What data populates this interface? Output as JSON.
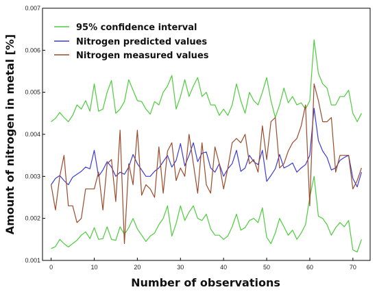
{
  "chart_data": {
    "type": "line",
    "title": "",
    "xlabel": "Number of observations",
    "ylabel": "Amount of nitrogen in metal [%]",
    "xlim": [
      -2,
      74
    ],
    "ylim": [
      0.001,
      0.007
    ],
    "xticks": [
      "0",
      "10",
      "20",
      "30",
      "40",
      "50",
      "60",
      "70"
    ],
    "yticks": [
      "0.001",
      "0.002",
      "0.003",
      "0.004",
      "0.005",
      "0.006",
      "0.007"
    ],
    "grid": false,
    "legend_position": "top-left",
    "x": [
      0,
      1,
      2,
      3,
      4,
      5,
      6,
      7,
      8,
      9,
      10,
      11,
      12,
      13,
      14,
      15,
      16,
      17,
      18,
      19,
      20,
      21,
      22,
      23,
      24,
      25,
      26,
      27,
      28,
      29,
      30,
      31,
      32,
      33,
      34,
      35,
      36,
      37,
      38,
      39,
      40,
      41,
      42,
      43,
      44,
      45,
      46,
      47,
      48,
      49,
      50,
      51,
      52,
      53,
      54,
      55,
      56,
      57,
      58,
      59,
      60,
      61,
      62,
      63,
      64,
      65,
      66,
      67,
      68,
      69,
      70,
      71,
      72
    ],
    "series": [
      {
        "name": "95% confidence interval",
        "color": "#4ccc3c",
        "values": [
          0.0043,
          0.00438,
          0.00452,
          0.0044,
          0.0043,
          0.00445,
          0.0047,
          0.0046,
          0.0048,
          0.00455,
          0.0052,
          0.00455,
          0.0046,
          0.005,
          0.00528,
          0.0045,
          0.0046,
          0.00478,
          0.0053,
          0.00505,
          0.0048,
          0.00478,
          0.0046,
          0.00448,
          0.00478,
          0.0047,
          0.005,
          0.00515,
          0.0054,
          0.0046,
          0.0049,
          0.0053,
          0.0049,
          0.00515,
          0.00535,
          0.0049,
          0.005,
          0.0047,
          0.0047,
          0.00445,
          0.0046,
          0.00445,
          0.0047,
          0.0052,
          0.0048,
          0.0045,
          0.005,
          0.0048,
          0.0047,
          0.005,
          0.00535,
          0.0048,
          0.0044,
          0.0047,
          0.0051,
          0.00475,
          0.0049,
          0.0047,
          0.00475,
          0.0046,
          0.0048,
          0.00625,
          0.00545,
          0.0052,
          0.0051,
          0.0047,
          0.0047,
          0.0049,
          0.0049,
          0.00505,
          0.0045,
          0.0043,
          0.0045
        ]
      },
      {
        "name": "",
        "color": "#4ccc3c",
        "values": [
          0.00128,
          0.00133,
          0.0015,
          0.0014,
          0.00132,
          0.0014,
          0.00148,
          0.0016,
          0.00168,
          0.00152,
          0.00178,
          0.0015,
          0.00152,
          0.0018,
          0.0015,
          0.00148,
          0.0018,
          0.00162,
          0.00178,
          0.002,
          0.00175,
          0.0016,
          0.00145,
          0.00158,
          0.00165,
          0.00185,
          0.002,
          0.0023,
          0.00158,
          0.00188,
          0.0023,
          0.00195,
          0.00215,
          0.0023,
          0.002,
          0.00195,
          0.0021,
          0.00175,
          0.0016,
          0.0016,
          0.0015,
          0.00158,
          0.0018,
          0.0021,
          0.00172,
          0.00178,
          0.00195,
          0.002,
          0.0019,
          0.00225,
          0.00155,
          0.0014,
          0.00165,
          0.002,
          0.0018,
          0.0016,
          0.00172,
          0.0015,
          0.00165,
          0.00185,
          0.0025,
          0.003,
          0.00205,
          0.002,
          0.00185,
          0.0016,
          0.00178,
          0.0019,
          0.0018,
          0.00195,
          0.00125,
          0.0012,
          0.0015
        ]
      },
      {
        "name": "Nitrogen predicted values",
        "color": "#3a3ad8",
        "values": [
          0.0028,
          0.00295,
          0.00302,
          0.0029,
          0.0028,
          0.00298,
          0.00305,
          0.00312,
          0.00322,
          0.00318,
          0.00362,
          0.003,
          0.00315,
          0.00335,
          0.00322,
          0.003,
          0.0031,
          0.00305,
          0.00322,
          0.00352,
          0.0033,
          0.00315,
          0.003,
          0.003,
          0.00312,
          0.0032,
          0.00335,
          0.0035,
          0.00322,
          0.00338,
          0.00378,
          0.00325,
          0.0035,
          0.0038,
          0.00335,
          0.00355,
          0.00358,
          0.0032,
          0.0031,
          0.0033,
          0.003,
          0.00318,
          0.0033,
          0.00362,
          0.00312,
          0.0032,
          0.0035,
          0.00335,
          0.00328,
          0.00362,
          0.00288,
          0.00302,
          0.00318,
          0.00352,
          0.0032,
          0.00325,
          0.00332,
          0.0031,
          0.0032,
          0.00328,
          0.0035,
          0.00462,
          0.00385,
          0.0036,
          0.00345,
          0.00315,
          0.0032,
          0.00338,
          0.00345,
          0.0035,
          0.00295,
          0.00275,
          0.0031
        ]
      },
      {
        "name": "Nitrogen measured values",
        "color": "#9a4a2a",
        "values": [
          0.0028,
          0.0022,
          0.003,
          0.0035,
          0.0023,
          0.0023,
          0.0019,
          0.002,
          0.0027,
          0.0027,
          0.0027,
          0.0031,
          0.0022,
          0.0033,
          0.0034,
          0.0024,
          0.0041,
          0.0014,
          0.0033,
          0.0028,
          0.0041,
          0.00255,
          0.0028,
          0.0027,
          0.0025,
          0.0037,
          0.0026,
          0.0036,
          0.0038,
          0.0029,
          0.0032,
          0.003,
          0.004,
          0.0033,
          0.0026,
          0.0038,
          0.0028,
          0.0026,
          0.0037,
          0.0033,
          0.0027,
          0.0032,
          0.0038,
          0.0039,
          0.0038,
          0.004,
          0.0033,
          0.0034,
          0.0031,
          0.0042,
          0.0034,
          0.0043,
          0.0044,
          0.0032,
          0.0033,
          0.0036,
          0.0038,
          0.0039,
          0.0042,
          0.0047,
          0.0023,
          0.0052,
          0.0048,
          0.0043,
          0.0043,
          0.0044,
          0.0031,
          0.0035,
          0.0035,
          0.0035,
          0.0027,
          0.0029,
          0.0032
        ]
      }
    ]
  }
}
